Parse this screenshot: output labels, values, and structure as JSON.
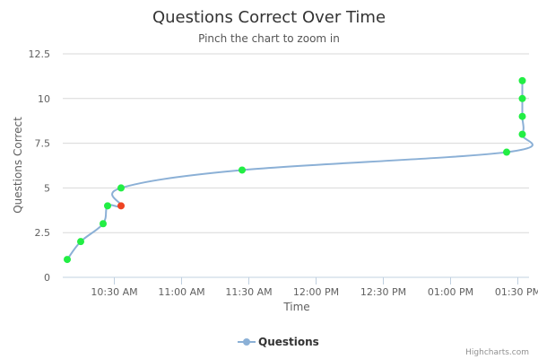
{
  "chart_data": {
    "type": "line",
    "title": "Questions Correct Over Time",
    "subtitle": "Pinch the chart to zoom in",
    "xlabel": "Time",
    "ylabel": "Questions Correct",
    "x_tick_labels": [
      "10:30 AM",
      "11:00 AM",
      "11:30 AM",
      "12:00 PM",
      "12:30 PM",
      "01:00 PM",
      "01:30 PM"
    ],
    "y_tick_labels": [
      "0",
      "2.5",
      "5",
      "7.5",
      "10",
      "12.5"
    ],
    "ylim": [
      0,
      12.5
    ],
    "xlim": [
      "10:07 AM",
      "01:35 PM"
    ],
    "grid": true,
    "legend_position": "bottom-center",
    "series": [
      {
        "name": "Questions",
        "color": "#8bb0d6",
        "points": [
          {
            "x": "10:09 AM",
            "y": 1,
            "color": "#22ee44"
          },
          {
            "x": "10:15 AM",
            "y": 2,
            "color": "#22ee44"
          },
          {
            "x": "10:25 AM",
            "y": 3,
            "color": "#22ee44"
          },
          {
            "x": "10:27 AM",
            "y": 4,
            "color": "#22ee44"
          },
          {
            "x": "10:33 AM",
            "y": 4,
            "color": "#ee4422"
          },
          {
            "x": "10:33 AM",
            "y": 5,
            "color": "#22ee44"
          },
          {
            "x": "11:27 AM",
            "y": 6,
            "color": "#22ee44"
          },
          {
            "x": "01:25 PM",
            "y": 7,
            "color": "#22ee44"
          },
          {
            "x": "01:32 PM",
            "y": 8,
            "color": "#22ee44"
          },
          {
            "x": "01:32 PM",
            "y": 9,
            "color": "#22ee44"
          },
          {
            "x": "01:32 PM",
            "y": 10,
            "color": "#22ee44"
          },
          {
            "x": "01:32 PM",
            "y": 11,
            "color": "#22ee44"
          }
        ]
      }
    ]
  },
  "legend": {
    "label": "Questions"
  },
  "credits": "Highcharts.com"
}
